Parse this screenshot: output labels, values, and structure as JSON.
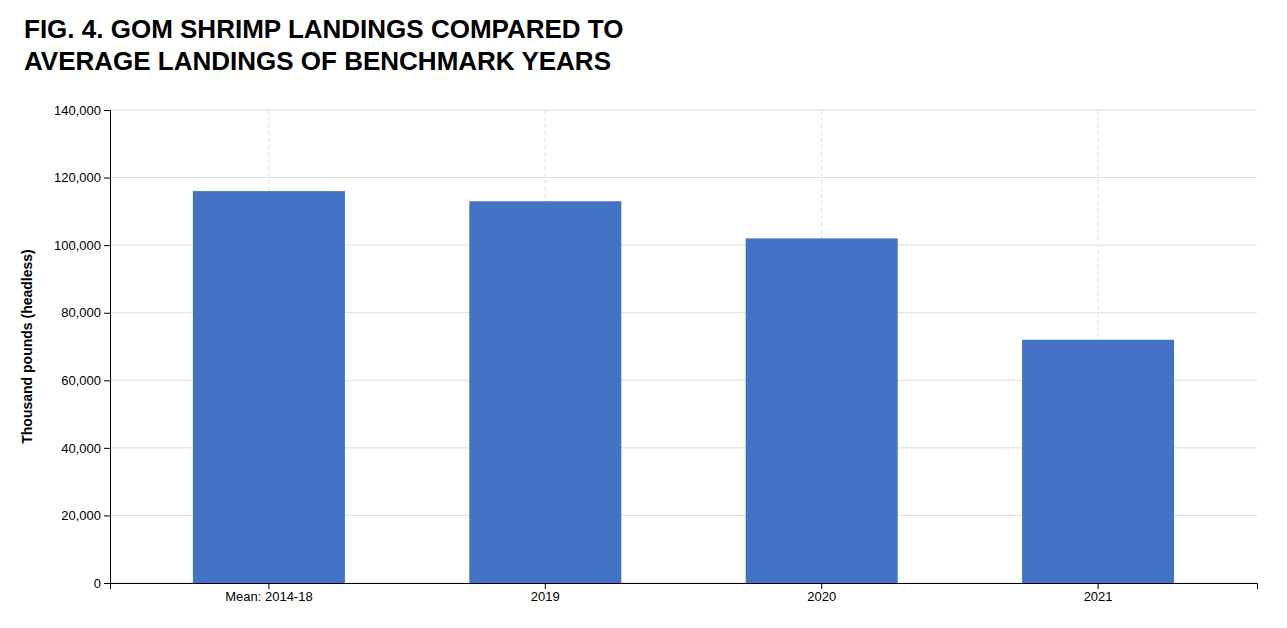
{
  "chart_data": {
    "type": "bar",
    "title": "FIG. 4. GOM SHRIMP LANDINGS COMPARED TO\nAVERAGE LANDINGS OF BENCHMARK YEARS",
    "y_label": "Thousand pounds (headless)",
    "categories": [
      "Mean: 2014-18",
      "2019",
      "2020",
      "2021"
    ],
    "values": [
      116000,
      113000,
      102000,
      72000
    ],
    "color": "#4472C4",
    "ylim": [
      0,
      140000
    ],
    "yticks": [
      0,
      {
        "value": 20000,
        "label": "20,000"
      },
      {
        "value": 40000,
        "label": "40,000"
      },
      {
        "value": 60000,
        "label": "60,000"
      },
      {
        "value": 80000,
        "label": "80,000"
      },
      {
        "value": 100000,
        "label": "100,000"
      },
      {
        "value": 120000,
        "label": "120,000"
      },
      {
        "value": 140000,
        "label": "140,000"
      }
    ],
    "grid": true
  }
}
